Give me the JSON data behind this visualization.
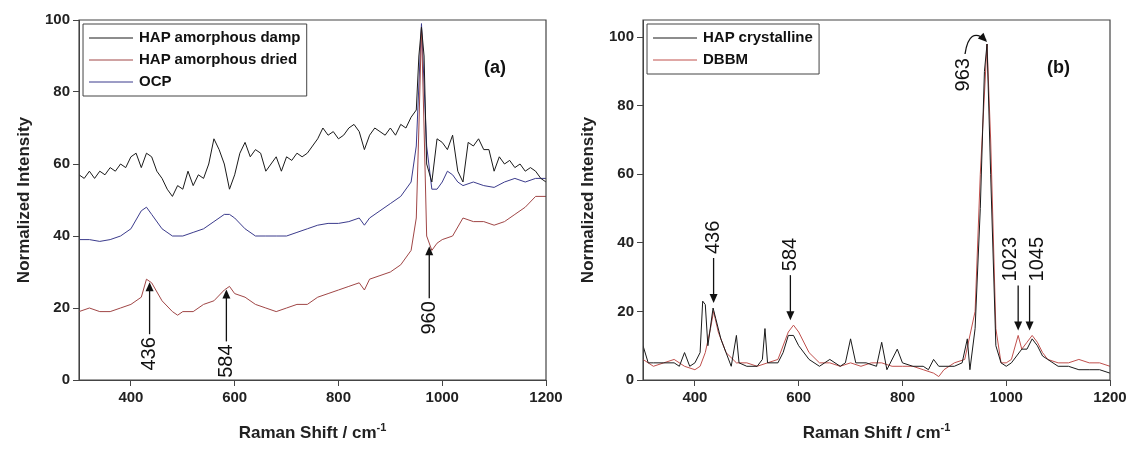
{
  "chart_data": [
    {
      "type": "line",
      "xlabel": "Raman Shift / cm$^{-1}$",
      "ylabel": "Normalized Intensity",
      "xlim": [
        300,
        1200
      ],
      "ylim": [
        0,
        100
      ],
      "xticks": [
        400,
        600,
        800,
        1000,
        1200
      ],
      "yticks": [
        0,
        20,
        40,
        60,
        80,
        100
      ],
      "grid": false,
      "legend": "top left",
      "series": [
        {
          "name": "HAP amorphous damp",
          "color": "#1a1a1a",
          "x": [
            300,
            310,
            320,
            330,
            340,
            350,
            360,
            370,
            380,
            390,
            400,
            410,
            420,
            430,
            440,
            450,
            460,
            470,
            480,
            490,
            500,
            510,
            520,
            530,
            540,
            550,
            560,
            570,
            580,
            590,
            600,
            610,
            620,
            630,
            640,
            650,
            660,
            670,
            680,
            690,
            700,
            710,
            720,
            730,
            740,
            750,
            760,
            770,
            780,
            790,
            800,
            810,
            820,
            830,
            840,
            850,
            860,
            870,
            880,
            890,
            900,
            910,
            920,
            930,
            940,
            950,
            955,
            960,
            965,
            970,
            980,
            990,
            1000,
            1010,
            1020,
            1030,
            1040,
            1050,
            1060,
            1070,
            1080,
            1090,
            1100,
            1110,
            1120,
            1130,
            1140,
            1150,
            1160,
            1170,
            1180,
            1190,
            1200
          ],
          "values": [
            57,
            56,
            58,
            56,
            58,
            57,
            59,
            58,
            60,
            59,
            62,
            63,
            59,
            63,
            62,
            58,
            56,
            53,
            51,
            54,
            53,
            58,
            54,
            57,
            56,
            60,
            67,
            64,
            60,
            53,
            57,
            63,
            66,
            62,
            64,
            63,
            58,
            60,
            62,
            58,
            62,
            61,
            63,
            62,
            63,
            65,
            67,
            70,
            68,
            69,
            67,
            68,
            70,
            71,
            69,
            64,
            68,
            70,
            69,
            68,
            70,
            68,
            71,
            70,
            73,
            75,
            90,
            98,
            90,
            60,
            55,
            67,
            66,
            64,
            68,
            58,
            55,
            66,
            65,
            67,
            64,
            64,
            58,
            62,
            60,
            61,
            59,
            60,
            58,
            59,
            58,
            56,
            55
          ]
        },
        {
          "name": "HAP amorphous dried",
          "color": "#a04646",
          "x": [
            300,
            320,
            340,
            360,
            380,
            400,
            420,
            430,
            440,
            460,
            480,
            490,
            500,
            520,
            540,
            560,
            580,
            590,
            600,
            620,
            640,
            660,
            680,
            700,
            720,
            740,
            760,
            780,
            800,
            820,
            840,
            850,
            860,
            880,
            900,
            920,
            940,
            950,
            955,
            960,
            965,
            970,
            980,
            990,
            1000,
            1020,
            1040,
            1060,
            1080,
            1100,
            1120,
            1140,
            1160,
            1180,
            1200
          ],
          "values": [
            19,
            20,
            19,
            19,
            20,
            21,
            23,
            28,
            27,
            22,
            19,
            18,
            19,
            19,
            21,
            22,
            25,
            26,
            24,
            23,
            21,
            20,
            19,
            20,
            21,
            21,
            23,
            24,
            25,
            26,
            27,
            25,
            28,
            29,
            30,
            32,
            36,
            45,
            70,
            98,
            70,
            40,
            36,
            38,
            39,
            40,
            45,
            44,
            44,
            43,
            44,
            46,
            48,
            51,
            51
          ]
        },
        {
          "name": "OCP",
          "color": "#3b3b8c",
          "x": [
            300,
            320,
            340,
            360,
            380,
            400,
            420,
            430,
            440,
            460,
            480,
            500,
            520,
            540,
            560,
            580,
            590,
            600,
            620,
            640,
            660,
            680,
            700,
            720,
            740,
            760,
            780,
            800,
            820,
            840,
            850,
            860,
            880,
            900,
            920,
            940,
            950,
            960,
            970,
            980,
            990,
            1000,
            1010,
            1020,
            1030,
            1040,
            1060,
            1080,
            1100,
            1120,
            1140,
            1160,
            1180,
            1200
          ],
          "values": [
            39,
            39,
            38.5,
            39,
            40,
            42,
            47,
            48,
            46,
            42,
            40,
            40,
            41,
            42,
            44,
            46,
            46,
            45,
            42,
            40,
            40,
            40,
            40,
            41,
            42,
            43,
            43.5,
            43.5,
            44,
            45,
            43,
            45,
            47,
            49,
            51,
            55,
            65,
            99,
            65,
            53,
            53,
            55,
            58,
            57,
            55,
            54,
            55,
            54,
            53.5,
            55,
            56,
            55,
            56,
            56
          ]
        }
      ],
      "annotations": [
        "(a)",
        {
          "text": "436",
          "x": 436,
          "y": 28
        },
        {
          "text": "584",
          "x": 584,
          "y": 26
        },
        {
          "text": "960",
          "x": 975,
          "y": 38
        }
      ]
    },
    {
      "type": "line",
      "xlabel": "Raman Shift / cm$^{-1}$",
      "ylabel": "Normalized Intensity",
      "xlim": [
        300,
        1200
      ],
      "ylim": [
        0,
        105
      ],
      "xticks": [
        400,
        600,
        800,
        1000,
        1200
      ],
      "yticks": [
        0,
        20,
        40,
        60,
        80,
        100
      ],
      "grid": false,
      "legend": "top left",
      "series": [
        {
          "name": "HAP crystalline",
          "color": "#1a1a1a",
          "x": [
            300,
            310,
            320,
            340,
            360,
            370,
            380,
            390,
            400,
            410,
            415,
            420,
            425,
            435,
            440,
            450,
            460,
            470,
            480,
            485,
            500,
            520,
            530,
            535,
            540,
            560,
            570,
            580,
            590,
            600,
            620,
            640,
            650,
            660,
            680,
            690,
            700,
            710,
            730,
            750,
            760,
            770,
            790,
            800,
            820,
            840,
            850,
            860,
            870,
            900,
            915,
            925,
            930,
            940,
            950,
            958,
            963,
            970,
            980,
            990,
            1000,
            1010,
            1020,
            1030,
            1040,
            1050,
            1060,
            1070,
            1080,
            1100,
            1120,
            1140,
            1160,
            1180,
            1200
          ],
          "values": [
            10,
            5,
            5,
            5,
            5,
            4,
            8,
            4,
            5,
            8,
            23,
            22,
            10,
            21,
            18,
            12,
            8,
            4,
            13,
            5,
            4,
            4,
            6,
            15,
            5,
            5,
            8,
            13,
            13,
            10,
            6,
            4,
            5,
            6,
            4,
            5,
            12,
            5,
            5,
            4,
            11,
            3,
            9,
            5,
            4,
            4,
            3,
            6,
            4,
            4,
            5,
            12,
            3,
            15,
            50,
            90,
            98,
            60,
            10,
            5,
            4,
            5,
            7,
            9,
            9,
            12,
            10,
            7,
            6,
            4,
            4,
            3,
            3,
            3,
            2
          ]
        },
        {
          "name": "DBBM",
          "color": "#c0504d",
          "x": [
            300,
            320,
            340,
            360,
            380,
            400,
            410,
            420,
            430,
            436,
            445,
            460,
            480,
            500,
            520,
            540,
            560,
            580,
            590,
            600,
            620,
            640,
            660,
            680,
            700,
            720,
            740,
            760,
            780,
            800,
            820,
            840,
            860,
            870,
            880,
            900,
            920,
            940,
            950,
            963,
            970,
            980,
            990,
            1000,
            1010,
            1023,
            1030,
            1040,
            1050,
            1060,
            1070,
            1080,
            1100,
            1120,
            1140,
            1160,
            1180,
            1200
          ],
          "values": [
            6,
            4,
            5,
            6,
            4,
            3,
            4,
            8,
            15,
            20,
            14,
            8,
            5,
            5,
            4,
            5,
            6,
            14,
            16,
            14,
            8,
            5,
            5,
            4,
            5,
            4,
            5,
            5,
            4,
            4,
            4,
            3,
            2,
            1,
            3,
            5,
            6,
            20,
            60,
            98,
            70,
            15,
            5,
            5,
            6,
            13,
            9,
            11,
            13,
            11,
            8,
            6,
            5,
            5,
            6,
            5,
            5,
            4
          ]
        }
      ],
      "annotations": [
        "(b)",
        {
          "text": "963",
          "x": 963,
          "y": 98
        },
        {
          "text": "436",
          "x": 436,
          "y": 21
        },
        {
          "text": "584",
          "x": 584,
          "y": 16
        },
        {
          "text": "1023",
          "x": 1023,
          "y": 13
        },
        {
          "text": "1045",
          "x": 1045,
          "y": 13
        }
      ]
    }
  ]
}
